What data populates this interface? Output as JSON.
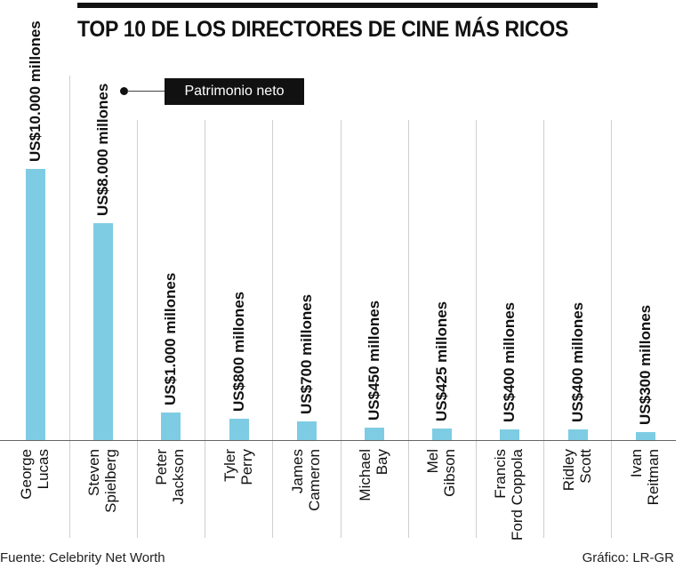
{
  "title": "TOP 10 DE LOS DIRECTORES DE CINE MÁS RICOS",
  "legend": {
    "label": "Patrimonio neto"
  },
  "colors": {
    "bar": "#7ecce3",
    "text": "#111111",
    "separator": "#cfcfcf"
  },
  "footer": {
    "source": "Fuente: Celebrity Net Worth",
    "credit": "Gráfico: LR-GR"
  },
  "directors": [
    {
      "line1": "George",
      "line2": "Lucas",
      "value_label": "US$10.000 millones",
      "value": 10000
    },
    {
      "line1": "Steven",
      "line2": "Spielberg",
      "value_label": "US$8.000 millones",
      "value": 8000
    },
    {
      "line1": "Peter",
      "line2": "Jackson",
      "value_label": "US$1.000 millones",
      "value": 1000
    },
    {
      "line1": "Tyler",
      "line2": "Perry",
      "value_label": "US$800 millones",
      "value": 800
    },
    {
      "line1": "James",
      "line2": "Cameron",
      "value_label": "US$700 millones",
      "value": 700
    },
    {
      "line1": "Michael",
      "line2": "Bay",
      "value_label": "US$450 millones",
      "value": 450
    },
    {
      "line1": "Mel",
      "line2": "Gibson",
      "value_label": "US$425 millones",
      "value": 425
    },
    {
      "line1": "Francis",
      "line2": "Ford Coppola",
      "value_label": "US$400 millones",
      "value": 400
    },
    {
      "line1": "Ridley",
      "line2": "Scott",
      "value_label": "US$400 millones",
      "value": 400
    },
    {
      "line1": "Ivan",
      "line2": "Reitman",
      "value_label": "US$300 millones",
      "value": 300
    }
  ],
  "chart_data": {
    "type": "bar",
    "title": "TOP 10 DE LOS DIRECTORES DE CINE MÁS RICOS",
    "xlabel": "",
    "ylabel": "Patrimonio neto (US$ millones)",
    "categories": [
      "George Lucas",
      "Steven Spielberg",
      "Peter Jackson",
      "Tyler Perry",
      "James Cameron",
      "Michael Bay",
      "Mel Gibson",
      "Francis Ford Coppola",
      "Ridley Scott",
      "Ivan Reitman"
    ],
    "values": [
      10000,
      8000,
      1000,
      800,
      700,
      450,
      425,
      400,
      400,
      300
    ],
    "data_labels": [
      "US$10.000 millones",
      "US$8.000 millones",
      "US$1.000 millones",
      "US$800 millones",
      "US$700 millones",
      "US$450 millones",
      "US$425 millones",
      "US$400 millones",
      "US$400 millones",
      "US$300 millones"
    ],
    "legend": [
      "Patrimonio neto"
    ],
    "ylim": [
      0,
      10000
    ],
    "grid": false,
    "source": "Fuente: Celebrity Net Worth",
    "credit": "Gráfico: LR-GR"
  }
}
